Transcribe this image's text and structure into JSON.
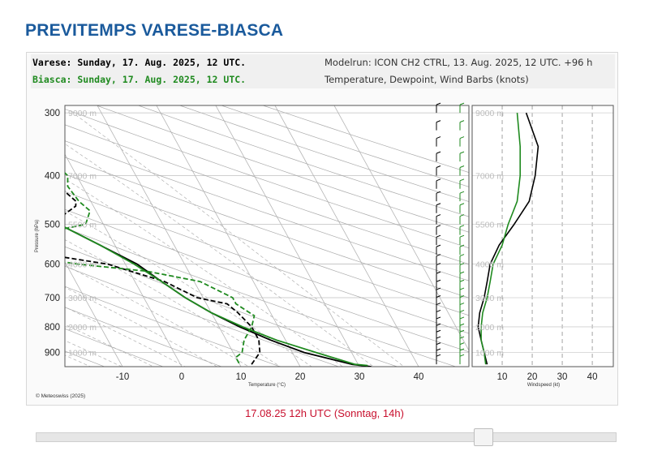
{
  "page": {
    "title": "PREVITEMPS VARESE-BIASCA",
    "header": {
      "left_line1": "Varese: Sunday, 17. Aug. 2025, 12 UTC.",
      "left_line2": "Biasca: Sunday, 17. Aug. 2025, 12 UTC.",
      "right_line1": "Modelrun: ICON CH2 CTRL, 13. Aug. 2025, 12 UTC. +96 h",
      "right_line2": "Temperature, Dewpoint, Wind Barbs (knots)"
    },
    "copyright": "© Meteoswiss (2025)",
    "timestamp": "17.08.25 12h UTC (Sonntag, 14h)",
    "slider": {
      "position_fraction": 0.78
    },
    "colors": {
      "title": "#1a5a9c",
      "varese": "#000000",
      "biasca": "#1f8a1f",
      "timestamp": "#c8102e"
    }
  },
  "chart_data": [
    {
      "type": "line",
      "subtype": "skew-t",
      "xlabel": "Temperature (°C)",
      "ylabel": "Pressure (hPa)",
      "x_ticks": [
        -10,
        0,
        10,
        20,
        30,
        40
      ],
      "y_ticks": [
        300,
        400,
        500,
        600,
        700,
        800,
        900
      ],
      "height_labels": [
        "9000 m",
        "7000 m",
        "5500 m",
        "4000 m",
        "3000 m",
        "2000 m",
        "1000 m"
      ],
      "height_label_pressures": [
        300,
        400,
        500,
        600,
        700,
        800,
        900
      ],
      "xlim": [
        -20,
        48
      ],
      "ylim": [
        960,
        290
      ],
      "y_scale": "log",
      "series": [
        {
          "name": "Varese",
          "role": "temperature",
          "color": "#000000",
          "dash": "",
          "pressure": [
            960,
            950,
            900,
            850,
            800,
            750,
            700,
            650,
            600,
            550,
            500,
            450,
            400,
            350,
            300
          ],
          "temperature": [
            32,
            29,
            22,
            17.5,
            13.5,
            10,
            7,
            4.5,
            2,
            -2.5,
            -7.5,
            -13.5,
            -20.5,
            -28,
            -36.5
          ]
        },
        {
          "name": "Varese",
          "role": "dewpoint",
          "color": "#000000",
          "dash": "6,3",
          "pressure": [
            950,
            900,
            850,
            800,
            750,
            720,
            700,
            650,
            600,
            570,
            550,
            520,
            500,
            480,
            460,
            450,
            420,
            400,
            380,
            350,
            330,
            300
          ],
          "temperature": [
            12,
            14.5,
            15.5,
            15.5,
            14.5,
            13.5,
            9,
            5,
            -3,
            -14,
            -20,
            -15,
            -10,
            -6,
            -3,
            -2.5,
            -4,
            -2.5,
            -3.5,
            -3,
            -4,
            -7
          ]
        },
        {
          "name": "Biasca",
          "role": "temperature",
          "color": "#1f8a1f",
          "dash": "",
          "pressure": [
            955,
            950,
            900,
            850,
            800,
            750,
            700,
            650,
            600,
            550,
            500,
            450,
            400,
            350,
            300
          ],
          "temperature": [
            31.5,
            29.5,
            24,
            18.5,
            14,
            10,
            7,
            4.5,
            1.5,
            -2.5,
            -7.5,
            -13.5,
            -20.5,
            -28.5,
            -37
          ]
        },
        {
          "name": "Biasca",
          "role": "dewpoint",
          "color": "#1f8a1f",
          "dash": "6,3",
          "pressure": [
            945,
            920,
            900,
            850,
            800,
            760,
            740,
            720,
            700,
            650,
            620,
            600,
            570,
            550,
            520,
            510,
            500,
            470,
            450,
            420,
            400,
            380,
            350,
            320,
            300
          ],
          "temperature": [
            10,
            10,
            11.5,
            13,
            15.5,
            17,
            16,
            15,
            15,
            11,
            3,
            -8,
            -19,
            -21,
            -14,
            -7,
            -3,
            -1,
            -2,
            -2.5,
            -1.5,
            -2.5,
            -2,
            -3,
            -6
          ]
        }
      ]
    },
    {
      "type": "line",
      "subtype": "wind-profile",
      "xlabel": "Windspeed (kt)",
      "x_ticks": [
        10,
        20,
        30,
        40
      ],
      "xlim": [
        0,
        47
      ],
      "height_labels": [
        "9000 m",
        "7000 m",
        "5500 m",
        "4000 m",
        "3000 m",
        "2000 m",
        "1000 m"
      ],
      "height_label_pressures": [
        300,
        400,
        500,
        600,
        700,
        800,
        900
      ],
      "series": [
        {
          "name": "Varese",
          "color": "#000000",
          "pressure": [
            950,
            900,
            850,
            800,
            750,
            700,
            650,
            600,
            550,
            500,
            450,
            400,
            350,
            300
          ],
          "speed": [
            5,
            4,
            3,
            2,
            2.5,
            4,
            5,
            6,
            9,
            14,
            19,
            21,
            22,
            18
          ]
        },
        {
          "name": "Biasca",
          "color": "#1f8a1f",
          "pressure": [
            950,
            900,
            850,
            800,
            750,
            700,
            650,
            600,
            550,
            500,
            450,
            400,
            350,
            300
          ],
          "speed": [
            4.5,
            4,
            3,
            3,
            3.5,
            5,
            6,
            7,
            10,
            12,
            15,
            16,
            16,
            15
          ]
        }
      ]
    }
  ]
}
